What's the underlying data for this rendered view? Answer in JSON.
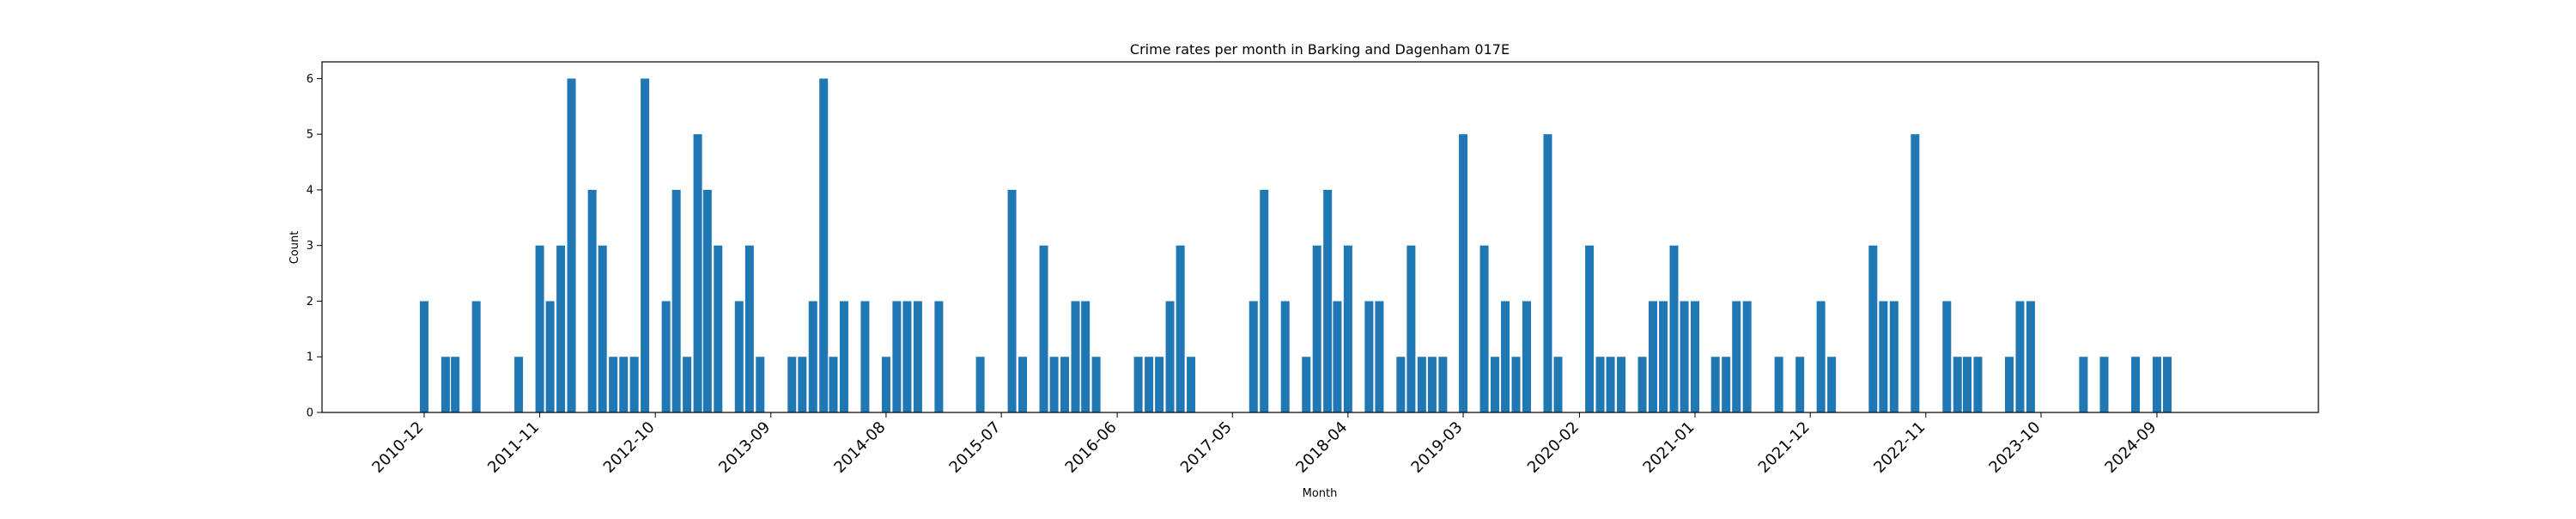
{
  "chart_data": {
    "type": "bar",
    "title": "Crime rates per month in Barking and Dagenham 017E",
    "xlabel": "Month",
    "ylabel": "Count",
    "ylim": [
      0,
      6.3
    ],
    "yticks": [
      0,
      1,
      2,
      3,
      4,
      5,
      6
    ],
    "x_tick_labels": [
      "2010-12",
      "2011-11",
      "2012-10",
      "2013-09",
      "2014-08",
      "2015-07",
      "2016-06",
      "2017-05",
      "2018-04",
      "2019-03",
      "2020-02",
      "2021-01",
      "2021-12",
      "2022-11",
      "2023-10",
      "2024-09"
    ],
    "bar_color": "#1f77b4",
    "grid": false,
    "series": [
      {
        "categories": [
          "2010-12",
          "2011-02",
          "2011-03",
          "2011-05",
          "2011-09",
          "2011-11",
          "2011-12",
          "2012-01",
          "2012-02",
          "2012-04",
          "2012-05",
          "2012-06",
          "2012-07",
          "2012-08",
          "2012-09",
          "2012-11",
          "2012-12",
          "2013-01",
          "2013-02",
          "2013-03",
          "2013-04",
          "2013-06",
          "2013-07",
          "2013-08",
          "2013-11",
          "2013-12",
          "2014-01",
          "2014-02",
          "2014-03",
          "2014-04",
          "2014-06",
          "2014-08",
          "2014-09",
          "2014-10",
          "2014-11",
          "2015-01",
          "2015-05",
          "2015-08",
          "2015-09",
          "2015-11",
          "2015-12",
          "2016-01",
          "2016-02",
          "2016-03",
          "2016-04",
          "2016-08",
          "2016-09",
          "2016-10",
          "2016-11",
          "2016-12",
          "2017-01",
          "2017-07",
          "2017-08",
          "2017-10",
          "2017-12",
          "2018-01",
          "2018-02",
          "2018-03",
          "2018-04",
          "2018-06",
          "2018-07",
          "2018-09",
          "2018-10",
          "2018-11",
          "2018-12",
          "2019-01",
          "2019-03",
          "2019-05",
          "2019-06",
          "2019-07",
          "2019-08",
          "2019-09",
          "2019-11",
          "2019-12",
          "2020-03",
          "2020-04",
          "2020-05",
          "2020-06",
          "2020-08",
          "2020-09",
          "2020-10",
          "2020-11",
          "2020-12",
          "2021-01",
          "2021-03",
          "2021-04",
          "2021-05",
          "2021-06",
          "2021-09",
          "2021-11",
          "2022-01",
          "2022-02",
          "2022-06",
          "2022-07",
          "2022-08",
          "2022-10",
          "2023-01",
          "2023-02",
          "2023-03",
          "2023-04",
          "2023-07",
          "2023-08",
          "2023-09",
          "2024-02",
          "2024-04",
          "2024-07",
          "2024-09",
          "2024-10"
        ],
        "values": [
          2,
          1,
          1,
          2,
          1,
          3,
          2,
          3,
          6,
          4,
          3,
          1,
          1,
          1,
          6,
          2,
          4,
          1,
          5,
          4,
          3,
          2,
          3,
          1,
          1,
          1,
          2,
          6,
          1,
          2,
          2,
          1,
          2,
          2,
          2,
          2,
          1,
          4,
          1,
          3,
          1,
          1,
          2,
          2,
          1,
          1,
          1,
          1,
          2,
          3,
          1,
          2,
          4,
          2,
          1,
          3,
          4,
          2,
          3,
          2,
          2,
          1,
          3,
          1,
          1,
          1,
          5,
          3,
          1,
          2,
          1,
          2,
          5,
          1,
          3,
          1,
          1,
          1,
          1,
          2,
          2,
          3,
          2,
          2,
          1,
          1,
          2,
          2,
          1,
          1,
          2,
          1,
          3,
          2,
          2,
          5,
          2,
          1,
          1,
          1,
          1,
          2,
          2,
          1,
          1,
          1,
          1,
          1
        ]
      }
    ]
  }
}
